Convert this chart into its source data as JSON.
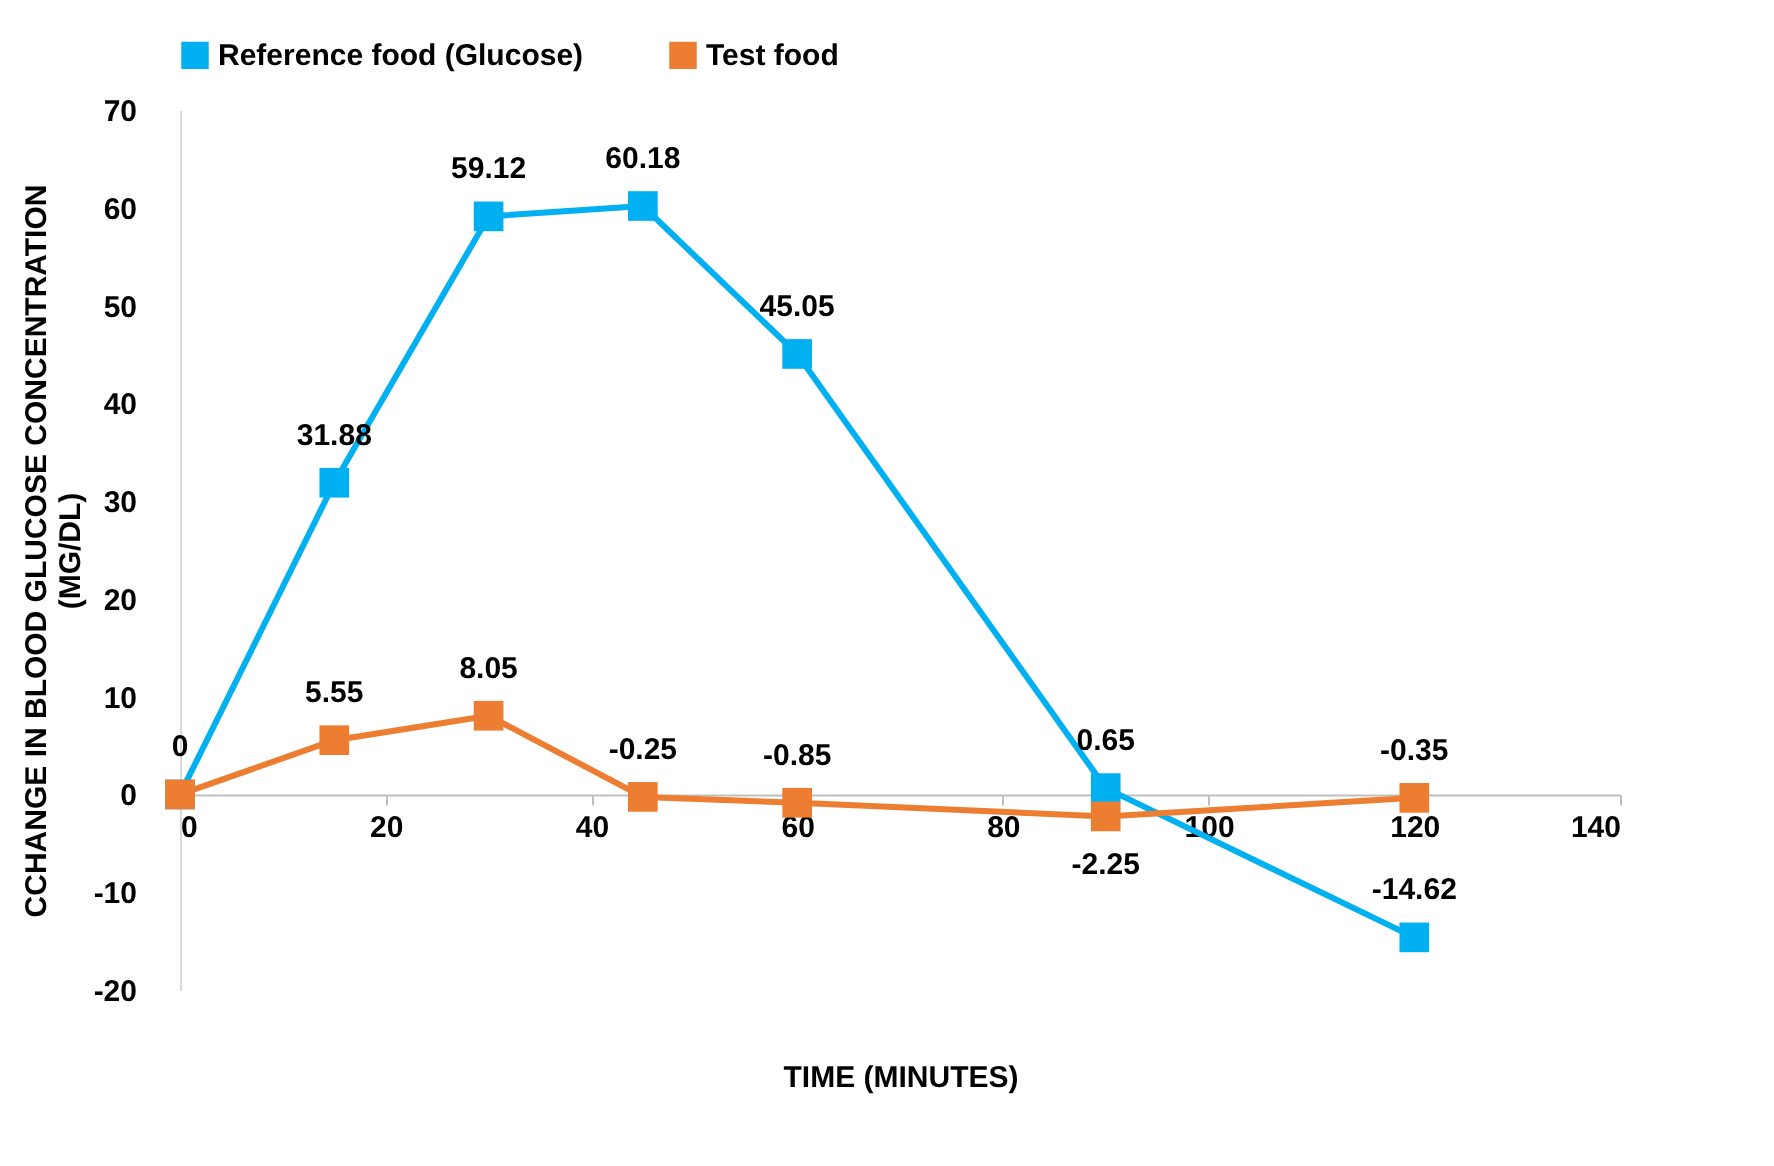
{
  "chart_data": {
    "type": "line",
    "xlabel": "TIME (MINUTES)",
    "ylabel": "CCHANGE IN BLOOD GLUCOSE CONCENTRATION (MG/DL)",
    "x": [
      0,
      15,
      30,
      45,
      60,
      90,
      120
    ],
    "series": [
      {
        "name": "Reference food (Glucose)",
        "color": "#00b0f0",
        "values": [
          0,
          31.88,
          59.12,
          60.18,
          45.05,
          0.65,
          -14.62
        ],
        "value_labels": [
          null,
          "31.88",
          "59.12",
          "60.18",
          "45.05",
          "0.65",
          "-14.62"
        ]
      },
      {
        "name": "Test food",
        "color": "#ed7d31",
        "values": [
          0,
          5.55,
          8.05,
          -0.25,
          -0.85,
          -2.25,
          -0.35
        ],
        "value_labels": [
          "0",
          "5.55",
          "8.05",
          "-0.25",
          "-0.85",
          "-2.25",
          "-0.35"
        ]
      }
    ],
    "xlim": [
      0,
      140
    ],
    "xticks": [
      0,
      20,
      40,
      60,
      80,
      100,
      120,
      140
    ],
    "ylim": [
      -20,
      70
    ],
    "yticks": [
      -20,
      -10,
      0,
      10,
      20,
      30,
      40,
      50,
      60,
      70
    ],
    "grid": false,
    "legend": "top",
    "marker": "square",
    "line_style": "solid"
  }
}
